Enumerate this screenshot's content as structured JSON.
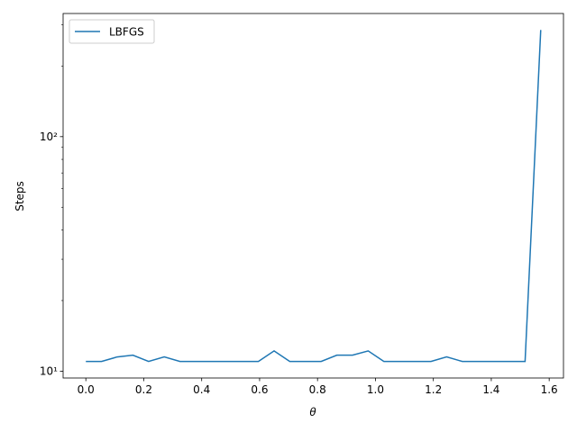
{
  "chart_data": {
    "type": "line",
    "xlabel": "θ",
    "ylabel": "Steps",
    "x": [
      0,
      0.0542,
      0.1083,
      0.1625,
      0.2167,
      0.2708,
      0.325,
      0.3792,
      0.4333,
      0.4875,
      0.5417,
      0.5958,
      0.65,
      0.7042,
      0.7583,
      0.8125,
      0.8667,
      0.9208,
      0.975,
      1.0292,
      1.0833,
      1.1375,
      1.1917,
      1.2458,
      1.3,
      1.3542,
      1.4083,
      1.4625,
      1.5167,
      1.5708
    ],
    "series": [
      {
        "name": "LBFGS",
        "color": "#1f77b4",
        "values": [
          11,
          11,
          11.5,
          11.7,
          11,
          11.5,
          11,
          11,
          11,
          11,
          11,
          11,
          12.2,
          11,
          11,
          11,
          11.7,
          11.7,
          12.2,
          11,
          11,
          11,
          11,
          11.5,
          11,
          11,
          11,
          11,
          11,
          285
        ]
      }
    ],
    "xlim": [
      -0.0785,
      1.6493
    ],
    "xticks": [
      {
        "value": 0,
        "label": "0.0"
      },
      0.2,
      0.4,
      0.6,
      0.8,
      {
        "value": 1,
        "label": "1.0"
      },
      1.2,
      1.4,
      1.6
    ],
    "ylim": [
      9.35,
      335
    ],
    "yscale": "log",
    "yticks": [
      {
        "value": 10,
        "label": "10¹"
      },
      {
        "value": 100,
        "label": "10²"
      }
    ],
    "yminorticks": [
      20,
      30,
      40,
      50,
      60,
      70,
      80,
      90,
      200,
      300
    ],
    "legend": "upper left"
  }
}
